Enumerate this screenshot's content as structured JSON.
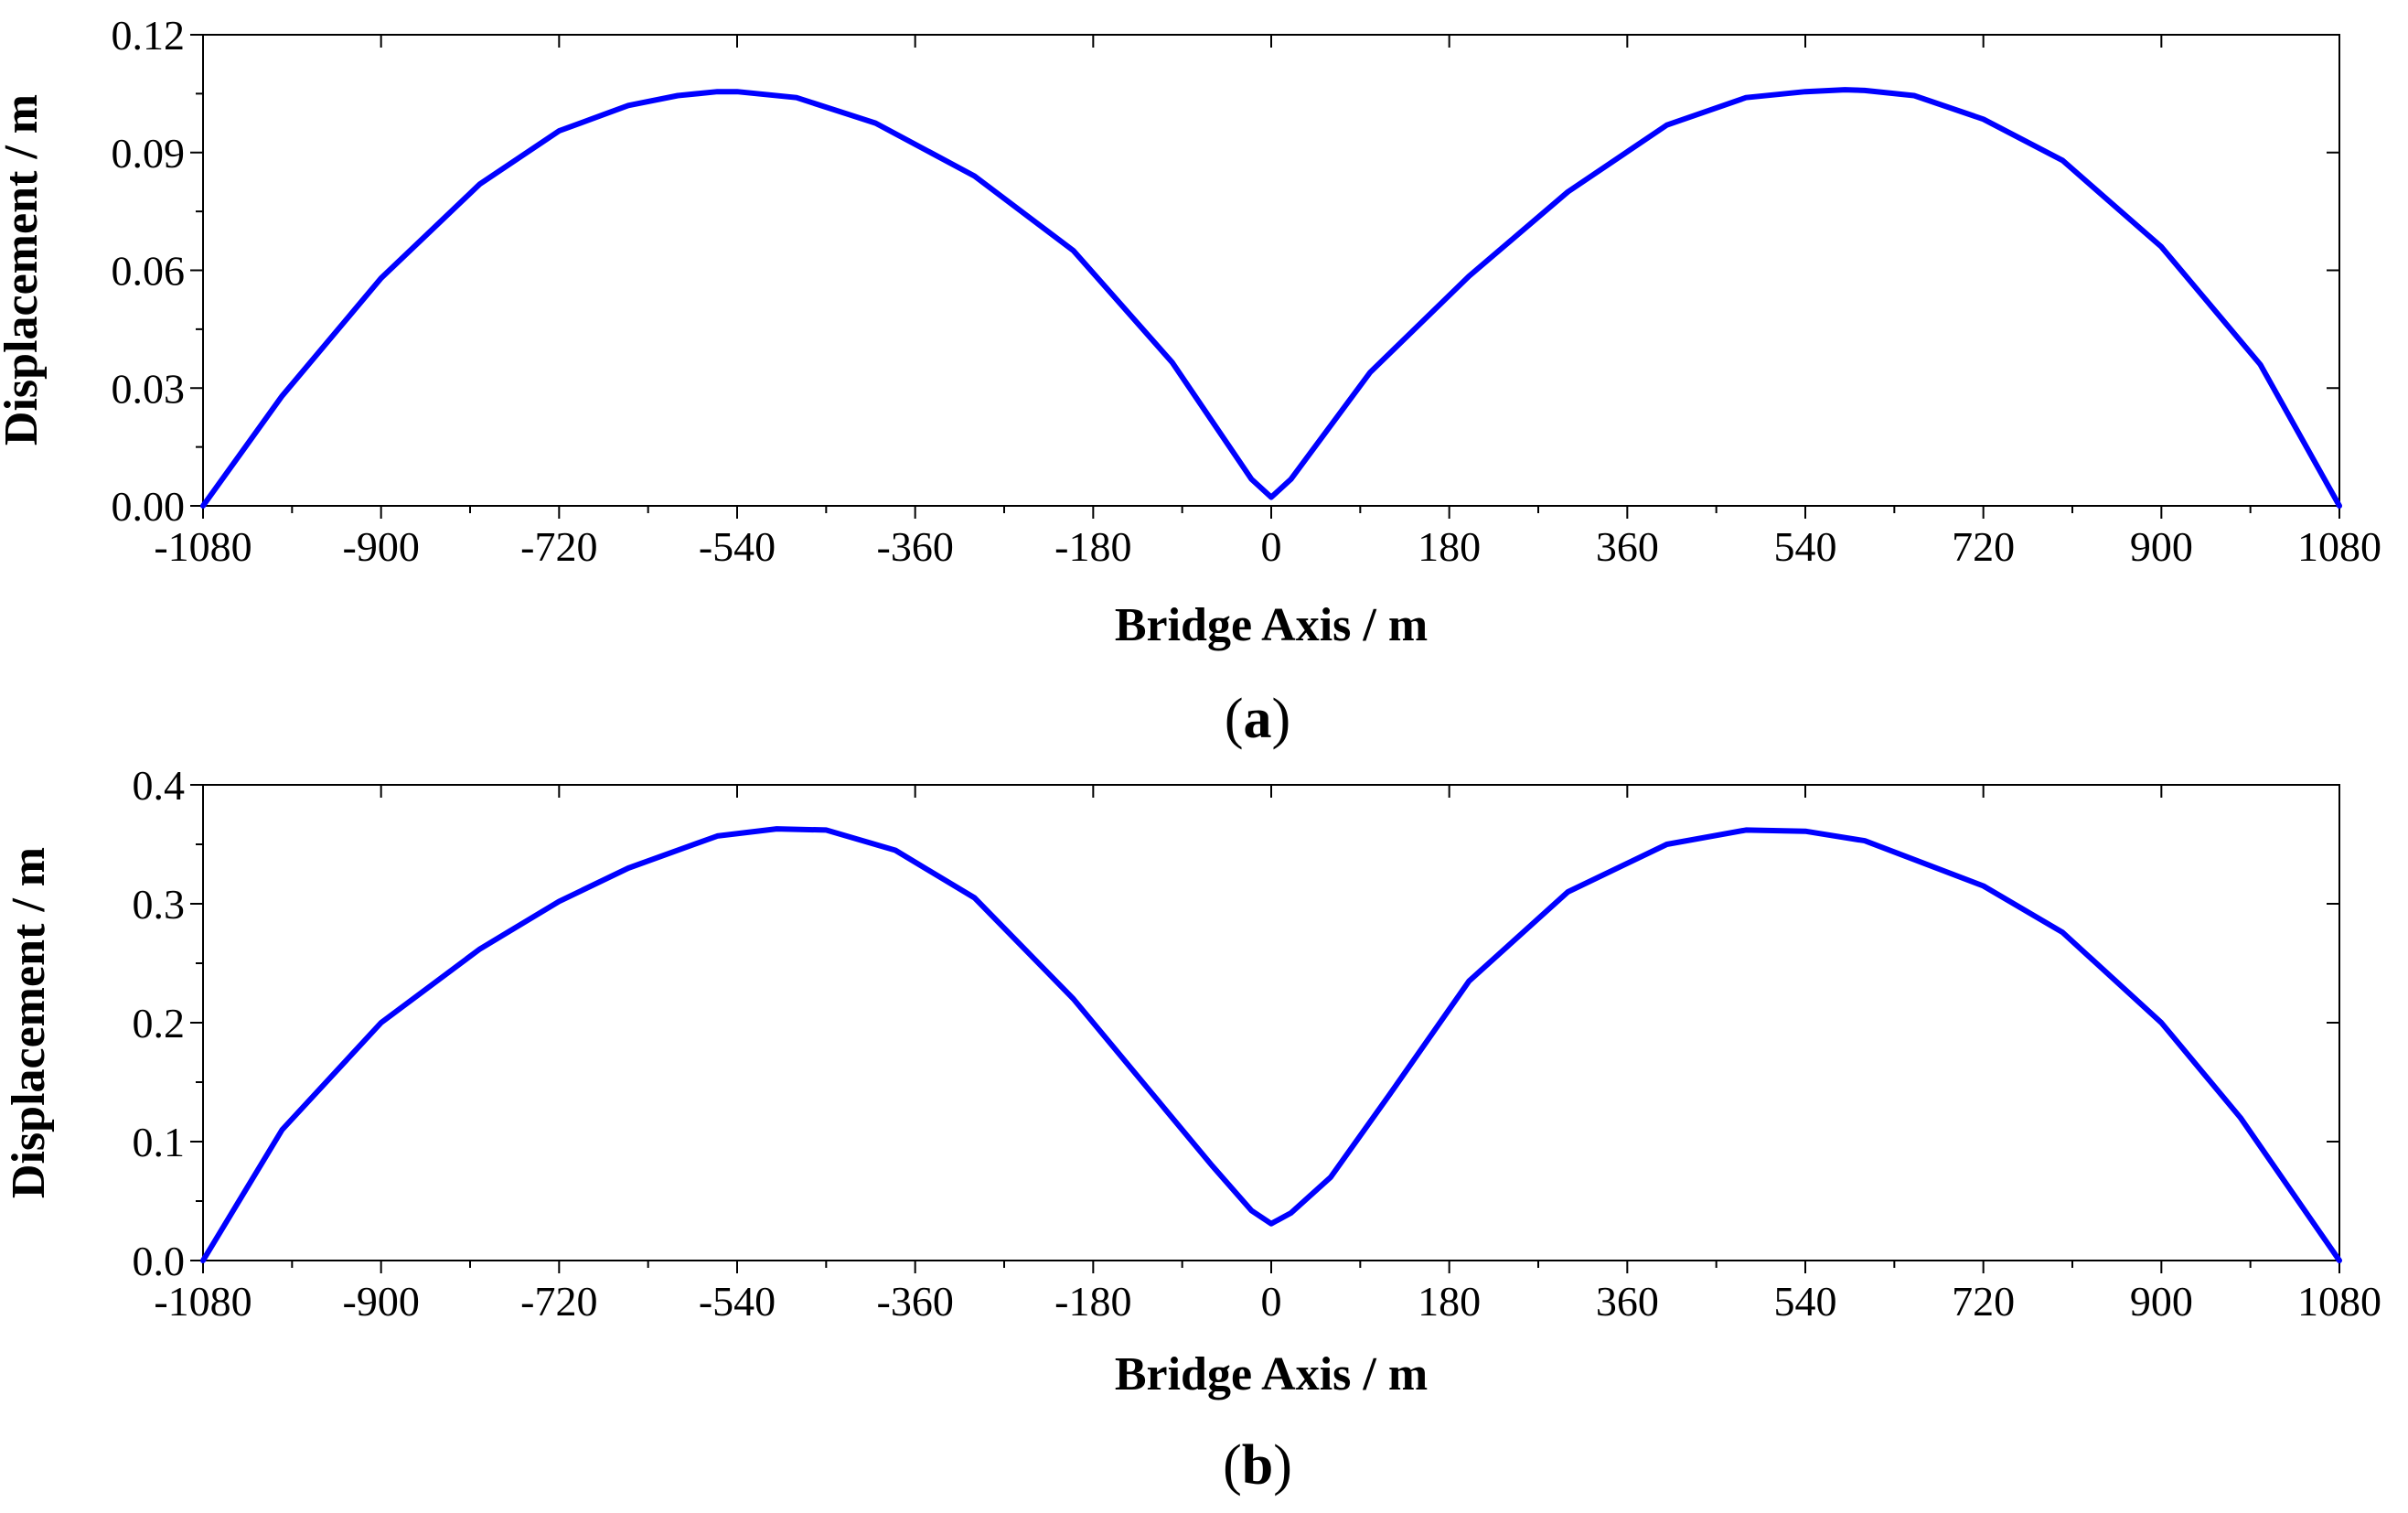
{
  "colors": {
    "series": "#0000ff",
    "axes": "#000000",
    "background": "#ffffff"
  },
  "chart_data": [
    {
      "type": "line",
      "panel_label": "a",
      "xlabel": "Bridge Axis / m",
      "ylabel": "Displacement / m",
      "xlim": [
        -1080,
        1080
      ],
      "ylim": [
        0,
        0.12
      ],
      "xticks": [
        "-1080",
        "-900",
        "-720",
        "-540",
        "-360",
        "-180",
        "0",
        "180",
        "360",
        "540",
        "720",
        "900",
        "1080"
      ],
      "yticks": [
        "0.00",
        "0.03",
        "0.06",
        "0.09",
        "0.12"
      ],
      "grid": false,
      "series": [
        {
          "color": "#0000ff",
          "x": [
            -1080,
            -1000,
            -900,
            -800,
            -720,
            -650,
            -600,
            -560,
            -540,
            -480,
            -400,
            -300,
            -200,
            -100,
            -20,
            0,
            20,
            100,
            200,
            300,
            400,
            480,
            540,
            580,
            600,
            650,
            720,
            800,
            900,
            1000,
            1080
          ],
          "y": [
            0.0,
            0.028,
            0.058,
            0.082,
            0.0955,
            0.102,
            0.1045,
            0.1055,
            0.1055,
            0.104,
            0.0975,
            0.084,
            0.065,
            0.0365,
            0.0068,
            0.0022,
            0.0068,
            0.034,
            0.0585,
            0.08,
            0.097,
            0.104,
            0.1055,
            0.106,
            0.1058,
            0.1045,
            0.0985,
            0.088,
            0.066,
            0.036,
            0.0
          ]
        }
      ]
    },
    {
      "type": "line",
      "panel_label": "b",
      "xlabel": "Bridge Axis / m",
      "ylabel": "Displacement / m",
      "xlim": [
        -1080,
        1080
      ],
      "ylim": [
        0,
        0.4
      ],
      "xticks": [
        "-1080",
        "-900",
        "-720",
        "-540",
        "-360",
        "-180",
        "0",
        "180",
        "360",
        "540",
        "720",
        "900",
        "1080"
      ],
      "yticks": [
        "0.0",
        "0.1",
        "0.2",
        "0.3",
        "0.4"
      ],
      "grid": false,
      "series": [
        {
          "color": "#0000ff",
          "x": [
            -1080,
            -1000,
            -900,
            -800,
            -720,
            -650,
            -560,
            -500,
            -450,
            -380,
            -300,
            -200,
            -120,
            -60,
            -20,
            0,
            20,
            60,
            120,
            200,
            300,
            400,
            480,
            540,
            600,
            720,
            800,
            900,
            980,
            1080
          ],
          "y": [
            0.0,
            0.11,
            0.2,
            0.262,
            0.302,
            0.33,
            0.357,
            0.363,
            0.362,
            0.345,
            0.305,
            0.22,
            0.14,
            0.08,
            0.042,
            0.031,
            0.04,
            0.07,
            0.14,
            0.235,
            0.31,
            0.35,
            0.362,
            0.361,
            0.353,
            0.315,
            0.276,
            0.2,
            0.12,
            0.0
          ]
        }
      ]
    }
  ]
}
